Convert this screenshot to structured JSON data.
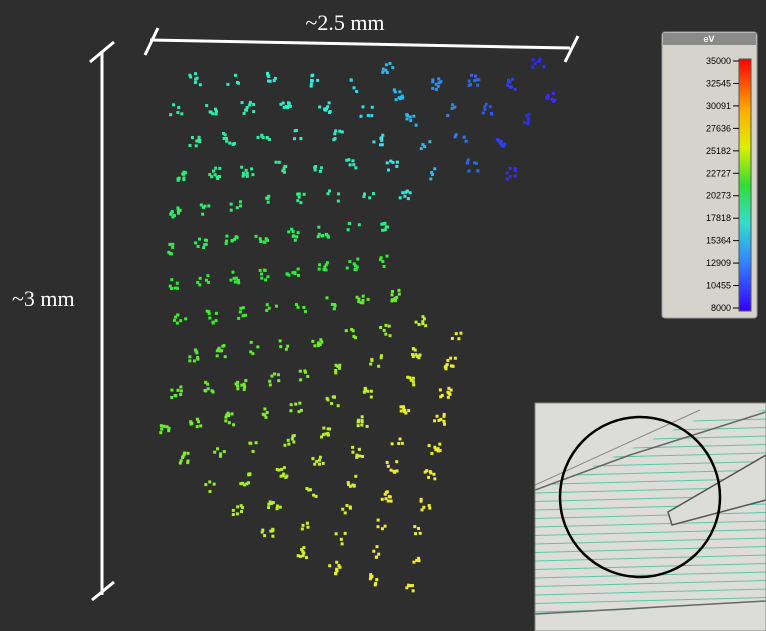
{
  "annotations": {
    "width": "~2.5 mm",
    "height": "~3 mm"
  },
  "colorbar": {
    "title": "eV",
    "ticks": [
      35000,
      32545,
      30091,
      27636,
      25182,
      22727,
      20273,
      17818,
      15364,
      12909,
      10455,
      8000
    ]
  }
}
